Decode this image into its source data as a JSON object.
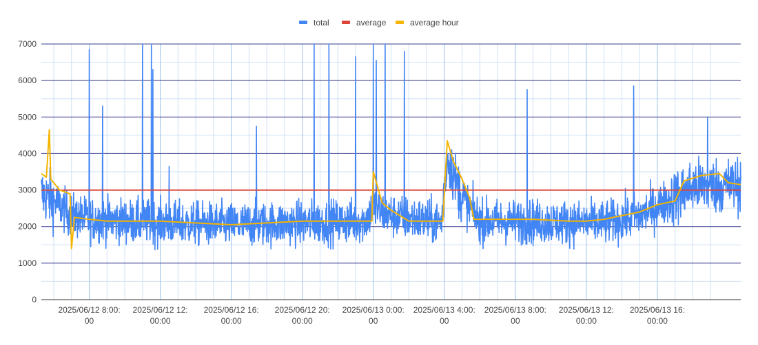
{
  "chart_data": {
    "type": "line",
    "legend_position": "top",
    "series": [
      {
        "name": "total",
        "color": "#4285f4",
        "values": []
      },
      {
        "name": "average",
        "color": "#db4437",
        "values": []
      },
      {
        "name": "average hour",
        "color": "#f4b400",
        "values": []
      }
    ],
    "ylim": [
      0,
      7000
    ],
    "y_ticks": [
      "0",
      "1000",
      "2000",
      "3000",
      "4000",
      "5000",
      "6000",
      "7000"
    ],
    "x_range": [
      "2025/06/12 05:18:00",
      "2025/06/13 20:42:00"
    ],
    "x_tick_labels": [
      {
        "line1": "2025/06/12 8:00:",
        "line2": "00"
      },
      {
        "line1": "2025/06/12 12:",
        "line2": "00:00"
      },
      {
        "line1": "2025/06/12 16:",
        "line2": "00:00"
      },
      {
        "line1": "2025/06/12 20:",
        "line2": "00:00"
      },
      {
        "line1": "2025/06/13 0:00:",
        "line2": "00"
      },
      {
        "line1": "2025/06/13 4:00:",
        "line2": "00"
      },
      {
        "line1": "2025/06/13 8:00:",
        "line2": "00"
      },
      {
        "line1": "2025/06/13 12:",
        "line2": "00:00"
      },
      {
        "line1": "2025/06/13 16:",
        "line2": "00:00"
      }
    ],
    "x_tick_times": [
      "2025/06/12 08:00",
      "2025/06/12 12:00",
      "2025/06/12 16:00",
      "2025/06/12 20:00",
      "2025/06/13 00:00",
      "2025/06/13 04:00",
      "2025/06/13 08:00",
      "2025/06/13 12:00",
      "2025/06/13 16:00"
    ],
    "average_value": 3000,
    "total_baseline": [
      [
        "2025/06/12 05:18",
        2900
      ],
      [
        "2025/06/12 06:00",
        2700
      ],
      [
        "2025/06/12 07:00",
        2300
      ],
      [
        "2025/06/12 08:00",
        2200
      ],
      [
        "2025/06/12 12:00",
        2100
      ],
      [
        "2025/06/12 16:00",
        2050
      ],
      [
        "2025/06/12 20:00",
        2100
      ],
      [
        "2025/06/12 23:30",
        2150
      ],
      [
        "2025/06/13 00:00",
        2500
      ],
      [
        "2025/06/13 01:00",
        2300
      ],
      [
        "2025/06/13 03:50",
        2100
      ],
      [
        "2025/06/13 04:10",
        3900
      ],
      [
        "2025/06/13 05:00",
        2800
      ],
      [
        "2025/06/13 06:00",
        2150
      ],
      [
        "2025/06/13 13:00",
        2100
      ],
      [
        "2025/06/13 15:00",
        2300
      ],
      [
        "2025/06/13 17:00",
        2800
      ],
      [
        "2025/06/13 18:00",
        3100
      ],
      [
        "2025/06/13 20:42",
        3150
      ]
    ],
    "total_spikes": [
      [
        "2025/06/12 08:00",
        6850
      ],
      [
        "2025/06/12 08:45",
        5300
      ],
      [
        "2025/06/12 11:00",
        7000
      ],
      [
        "2025/06/12 11:30",
        7000
      ],
      [
        "2025/06/12 11:35",
        6300
      ],
      [
        "2025/06/12 12:30",
        3650
      ],
      [
        "2025/06/12 17:25",
        4750
      ],
      [
        "2025/06/12 20:40",
        7000
      ],
      [
        "2025/06/12 21:30",
        7000
      ],
      [
        "2025/06/12 23:00",
        6650
      ],
      [
        "2025/06/13 00:00",
        7000
      ],
      [
        "2025/06/13 00:10",
        6550
      ],
      [
        "2025/06/13 00:40",
        7000
      ],
      [
        "2025/06/13 01:45",
        6800
      ],
      [
        "2025/06/13 08:40",
        5750
      ],
      [
        "2025/06/13 14:40",
        5850
      ],
      [
        "2025/06/13 18:50",
        5000
      ]
    ],
    "average_hour_points": [
      [
        "2025/06/12 05:18",
        3450
      ],
      [
        "2025/06/12 05:35",
        3350
      ],
      [
        "2025/06/12 05:45",
        4650
      ],
      [
        "2025/06/12 05:50",
        3300
      ],
      [
        "2025/06/12 06:20",
        3000
      ],
      [
        "2025/06/12 06:55",
        2900
      ],
      [
        "2025/06/12 07:00",
        1400
      ],
      [
        "2025/06/12 07:10",
        2250
      ],
      [
        "2025/06/12 08:00",
        2200
      ],
      [
        "2025/06/12 09:00",
        2150
      ],
      [
        "2025/06/12 10:00",
        2150
      ],
      [
        "2025/06/12 11:00",
        2150
      ],
      [
        "2025/06/12 12:00",
        2150
      ],
      [
        "2025/06/12 14:00",
        2100
      ],
      [
        "2025/06/12 16:00",
        2050
      ],
      [
        "2025/06/12 18:00",
        2100
      ],
      [
        "2025/06/12 20:00",
        2150
      ],
      [
        "2025/06/12 22:00",
        2150
      ],
      [
        "2025/06/12 23:55",
        2150
      ],
      [
        "2025/06/13 00:00",
        3500
      ],
      [
        "2025/06/13 00:30",
        2650
      ],
      [
        "2025/06/13 01:00",
        2450
      ],
      [
        "2025/06/13 02:00",
        2150
      ],
      [
        "2025/06/13 03:55",
        2150
      ],
      [
        "2025/06/13 04:10",
        4350
      ],
      [
        "2025/06/13 04:30",
        3800
      ],
      [
        "2025/06/13 05:00",
        3300
      ],
      [
        "2025/06/13 05:25",
        2800
      ],
      [
        "2025/06/13 05:40",
        2200
      ],
      [
        "2025/06/13 07:00",
        2200
      ],
      [
        "2025/06/13 09:00",
        2200
      ],
      [
        "2025/06/13 11:00",
        2150
      ],
      [
        "2025/06/13 12:00",
        2150
      ],
      [
        "2025/06/13 13:00",
        2200
      ],
      [
        "2025/06/13 15:00",
        2400
      ],
      [
        "2025/06/13 16:00",
        2600
      ],
      [
        "2025/06/13 17:00",
        2700
      ],
      [
        "2025/06/13 17:30",
        3250
      ],
      [
        "2025/06/13 18:30",
        3400
      ],
      [
        "2025/06/13 19:30",
        3450
      ],
      [
        "2025/06/13 20:00",
        3200
      ],
      [
        "2025/06/13 20:42",
        3150
      ]
    ]
  }
}
